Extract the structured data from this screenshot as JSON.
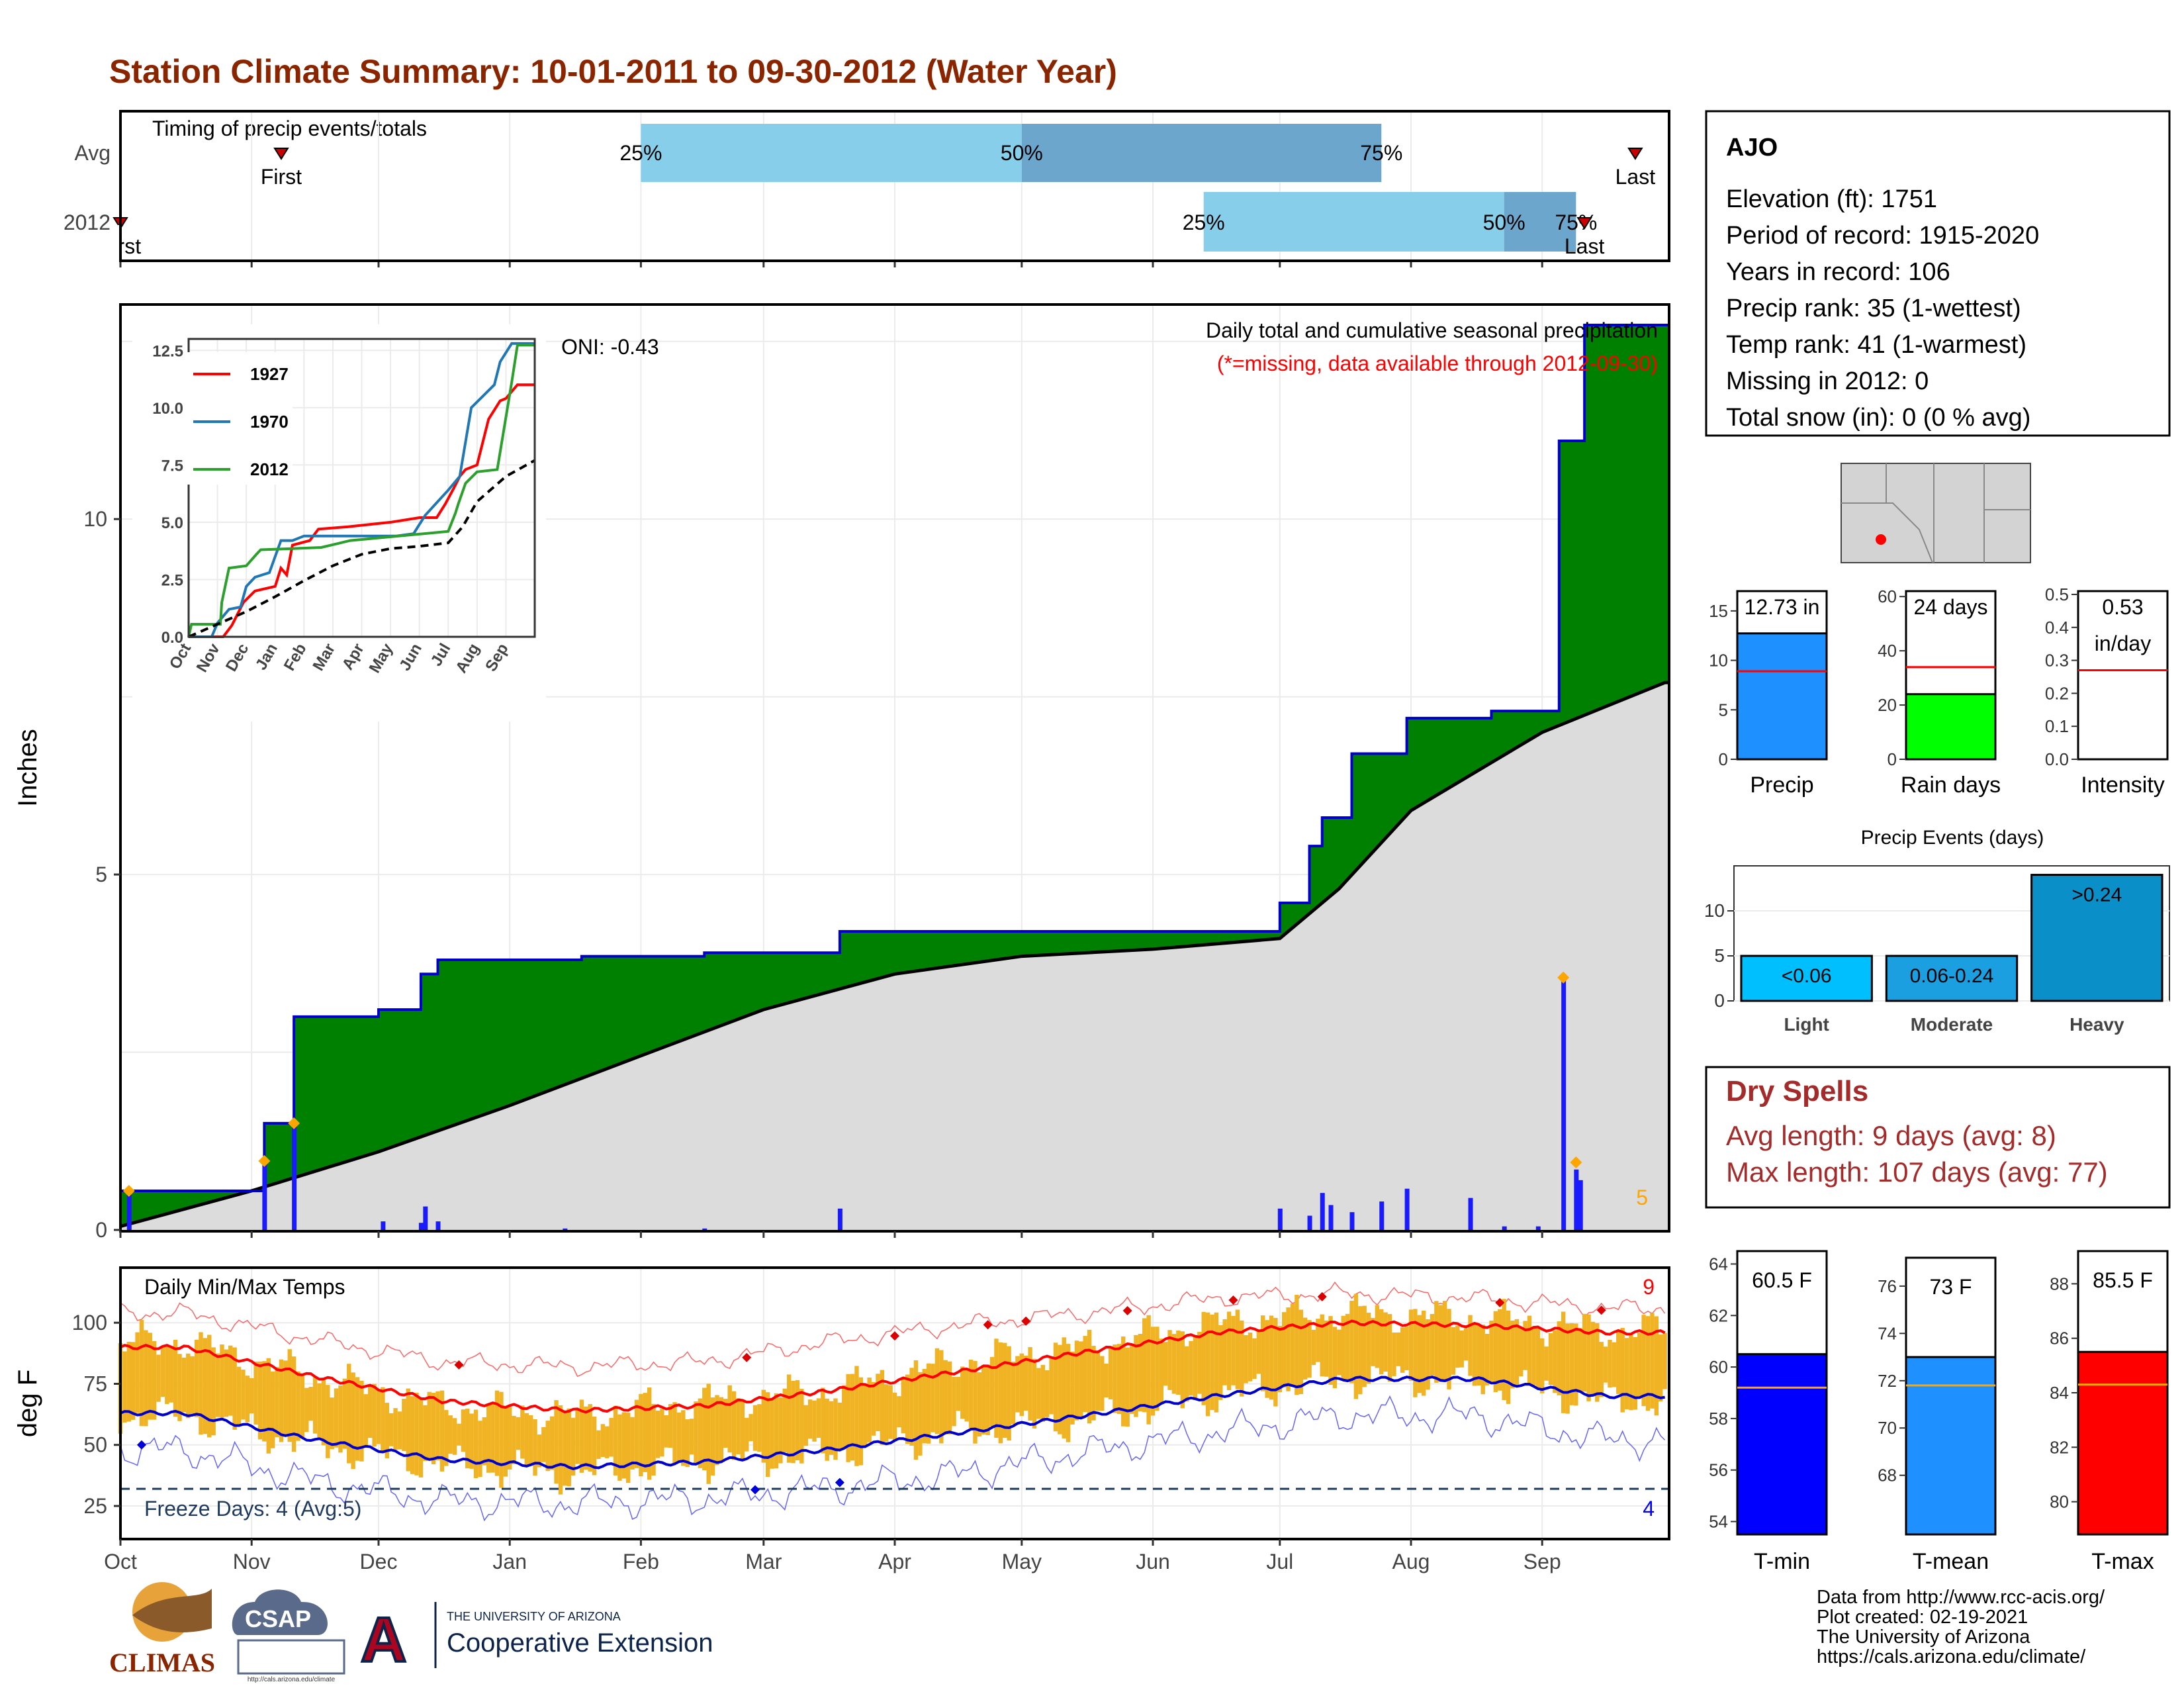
{
  "title": "Station Climate Summary: 10-01-2011 to 09-30-2012 (Water Year)",
  "months": [
    "Oct",
    "Nov",
    "Dec",
    "Jan",
    "Feb",
    "Mar",
    "Apr",
    "May",
    "Jun",
    "Jul",
    "Aug",
    "Sep"
  ],
  "colors": {
    "title": "#8B2500",
    "green": "#008000",
    "blue_line": "#0000CC",
    "bar_blue": "#1A1AFF",
    "orange": "#FFA500",
    "red": "#FF0000",
    "light_blue": "#87CEEB",
    "mid_blue": "#6CA6CD",
    "gray_fill": "#DCDCDC"
  },
  "timing_panel": {
    "label": "Timing of precip events/totals",
    "rows": [
      {
        "name": "Avg",
        "first": "Nov 8",
        "q25": "Feb 1",
        "q50": "May 1",
        "q75": "Jul 25",
        "last": "Sep 23",
        "first_label": "First",
        "last_label": "Last",
        "q25_label": "25%",
        "q50_label": "50%",
        "q75_label": "75%"
      },
      {
        "name": "2012",
        "first": "Oct 1",
        "q25": "Jun 13",
        "q50": "Aug 23",
        "q75": "Sep 9",
        "last": "Sep 11",
        "first_label": "First",
        "last_label": "Last",
        "q25_label": "25%",
        "q50_label": "50%",
        "q75_label": "75%"
      }
    ]
  },
  "precip_panel": {
    "ylabel": "Inches",
    "yticks": [
      0,
      5,
      10
    ],
    "ylim": [
      0,
      13
    ],
    "title_line1": "Daily total and cumulative seasonal precipitation",
    "title_line2": "(*=missing, data available through 2012-09-30)",
    "oni": "ONI: -0.43",
    "count_label": "5",
    "cumulative_2012": [
      {
        "date": "2011-10-01",
        "value": 0.55
      },
      {
        "date": "2011-11-04",
        "value": 1.5
      },
      {
        "date": "2011-11-11",
        "value": 3.0
      },
      {
        "date": "2011-12-01",
        "value": 3.1
      },
      {
        "date": "2011-12-11",
        "value": 3.6
      },
      {
        "date": "2011-12-15",
        "value": 3.8
      },
      {
        "date": "2012-01-18",
        "value": 3.85
      },
      {
        "date": "2012-02-16",
        "value": 3.9
      },
      {
        "date": "2012-03-19",
        "value": 4.2
      },
      {
        "date": "2012-07-01",
        "value": 4.6
      },
      {
        "date": "2012-07-08",
        "value": 5.4
      },
      {
        "date": "2012-07-11",
        "value": 5.8
      },
      {
        "date": "2012-07-18",
        "value": 6.7
      },
      {
        "date": "2012-07-31",
        "value": 7.2
      },
      {
        "date": "2012-08-20",
        "value": 7.3
      },
      {
        "date": "2012-09-05",
        "value": 11.1
      },
      {
        "date": "2012-09-11",
        "value": 12.73
      }
    ],
    "cumulative_avg": [
      {
        "date": "2011-10-01",
        "value": 0.05
      },
      {
        "date": "2011-11-01",
        "value": 0.55
      },
      {
        "date": "2011-12-01",
        "value": 1.1
      },
      {
        "date": "2012-01-01",
        "value": 1.75
      },
      {
        "date": "2012-02-01",
        "value": 2.45
      },
      {
        "date": "2012-03-01",
        "value": 3.1
      },
      {
        "date": "2012-04-01",
        "value": 3.6
      },
      {
        "date": "2012-05-01",
        "value": 3.85
      },
      {
        "date": "2012-06-01",
        "value": 3.95
      },
      {
        "date": "2012-07-01",
        "value": 4.1
      },
      {
        "date": "2012-07-15",
        "value": 4.8
      },
      {
        "date": "2012-08-01",
        "value": 5.9
      },
      {
        "date": "2012-09-01",
        "value": 7.0
      },
      {
        "date": "2012-09-30",
        "value": 7.7
      }
    ],
    "daily_bars": [
      {
        "date": "2011-10-03",
        "value": 0.5
      },
      {
        "date": "2011-11-04",
        "value": 0.95
      },
      {
        "date": "2011-11-11",
        "value": 1.45
      },
      {
        "date": "2011-12-02",
        "value": 0.12
      },
      {
        "date": "2011-12-11",
        "value": 0.1
      },
      {
        "date": "2011-12-12",
        "value": 0.33
      },
      {
        "date": "2011-12-15",
        "value": 0.12
      },
      {
        "date": "2012-01-14",
        "value": 0.02
      },
      {
        "date": "2012-02-16",
        "value": 0.02
      },
      {
        "date": "2012-03-19",
        "value": 0.3
      },
      {
        "date": "2012-07-01",
        "value": 0.3
      },
      {
        "date": "2012-07-08",
        "value": 0.2
      },
      {
        "date": "2012-07-11",
        "value": 0.52
      },
      {
        "date": "2012-07-13",
        "value": 0.35
      },
      {
        "date": "2012-07-18",
        "value": 0.25
      },
      {
        "date": "2012-07-25",
        "value": 0.4
      },
      {
        "date": "2012-07-31",
        "value": 0.58
      },
      {
        "date": "2012-08-15",
        "value": 0.45
      },
      {
        "date": "2012-08-23",
        "value": 0.05
      },
      {
        "date": "2012-08-31",
        "value": 0.05
      },
      {
        "date": "2012-09-06",
        "value": 3.6
      },
      {
        "date": "2012-09-09",
        "value": 0.85
      },
      {
        "date": "2012-09-10",
        "value": 0.7
      }
    ],
    "event_markers": [
      {
        "date": "2011-10-03",
        "value": 0.55
      },
      {
        "date": "2011-11-04",
        "value": 0.97
      },
      {
        "date": "2011-11-11",
        "value": 1.5
      },
      {
        "date": "2012-09-06",
        "value": 3.55
      },
      {
        "date": "2012-09-09",
        "value": 0.95
      }
    ]
  },
  "inset": {
    "yticks": [
      "0.0",
      "2.5",
      "5.0",
      "7.5",
      "10.0",
      "12.5"
    ],
    "xticks": [
      "Oct",
      "Nov",
      "Dec",
      "Jan",
      "Feb",
      "Mar",
      "Apr",
      "May",
      "Jun",
      "Jul",
      "Aug",
      "Sep"
    ],
    "legend": [
      "1927",
      "1970",
      "2012"
    ],
    "series": [
      {
        "name": "1927",
        "color": "#FF0000",
        "points": [
          [
            0,
            0
          ],
          [
            1.2,
            0
          ],
          [
            1.5,
            0.5
          ],
          [
            1.9,
            1.5
          ],
          [
            2.3,
            2.0
          ],
          [
            3.0,
            2.2
          ],
          [
            3.2,
            3.0
          ],
          [
            3.4,
            2.7
          ],
          [
            3.6,
            4.0
          ],
          [
            4.2,
            4.2
          ],
          [
            4.5,
            4.7
          ],
          [
            5.5,
            4.8
          ],
          [
            7.0,
            5.0
          ],
          [
            8.0,
            5.2
          ],
          [
            8.6,
            5.2
          ],
          [
            8.9,
            5.8
          ],
          [
            9.2,
            6.5
          ],
          [
            9.4,
            7.0
          ],
          [
            9.6,
            7.3
          ],
          [
            10.0,
            7.5
          ],
          [
            10.4,
            9.5
          ],
          [
            10.8,
            10.3
          ],
          [
            11.0,
            10.4
          ],
          [
            11.4,
            11.0
          ],
          [
            12.0,
            11.0
          ]
        ]
      },
      {
        "name": "1970",
        "color": "#1F77B4",
        "points": [
          [
            0,
            0
          ],
          [
            0.8,
            0
          ],
          [
            1.0,
            0.6
          ],
          [
            1.4,
            1.2
          ],
          [
            1.8,
            1.3
          ],
          [
            2.0,
            2.2
          ],
          [
            2.3,
            2.6
          ],
          [
            2.8,
            2.8
          ],
          [
            3.2,
            4.2
          ],
          [
            3.6,
            4.2
          ],
          [
            4.0,
            4.4
          ],
          [
            5.0,
            4.4
          ],
          [
            6.0,
            4.4
          ],
          [
            7.2,
            4.4
          ],
          [
            7.8,
            4.5
          ],
          [
            8.2,
            5.3
          ],
          [
            9.0,
            6.4
          ],
          [
            9.4,
            7.0
          ],
          [
            9.8,
            10.0
          ],
          [
            10.2,
            10.5
          ],
          [
            10.6,
            11.0
          ],
          [
            10.8,
            12.0
          ],
          [
            11.2,
            12.8
          ],
          [
            12.0,
            12.8
          ]
        ]
      },
      {
        "name": "2012",
        "color": "#2CA02C",
        "points": [
          [
            0,
            0
          ],
          [
            0.1,
            0.55
          ],
          [
            1.1,
            0.55
          ],
          [
            1.15,
            1.5
          ],
          [
            1.4,
            3.0
          ],
          [
            2.0,
            3.1
          ],
          [
            2.35,
            3.6
          ],
          [
            2.5,
            3.8
          ],
          [
            3.6,
            3.85
          ],
          [
            4.6,
            3.9
          ],
          [
            5.6,
            4.2
          ],
          [
            9.0,
            4.6
          ],
          [
            9.25,
            5.4
          ],
          [
            9.35,
            5.8
          ],
          [
            9.6,
            6.7
          ],
          [
            10.0,
            7.2
          ],
          [
            10.7,
            7.3
          ],
          [
            11.2,
            11.1
          ],
          [
            11.4,
            12.73
          ],
          [
            12.0,
            12.73
          ]
        ]
      },
      {
        "name": "avg",
        "color": "#000000",
        "points": [
          [
            0,
            0
          ],
          [
            1,
            0.55
          ],
          [
            2,
            1.1
          ],
          [
            3,
            1.75
          ],
          [
            4,
            2.45
          ],
          [
            5,
            3.1
          ],
          [
            6,
            3.6
          ],
          [
            7,
            3.85
          ],
          [
            8,
            3.95
          ],
          [
            9,
            4.1
          ],
          [
            9.5,
            4.8
          ],
          [
            10,
            5.9
          ],
          [
            11,
            7.0
          ],
          [
            12,
            7.7
          ]
        ]
      }
    ]
  },
  "temp_panel": {
    "ylabel": "deg F",
    "yticks": [
      25,
      50,
      75,
      100
    ],
    "title": "Daily Min/Max Temps",
    "freeze_label": "Freeze Days: 4 (Avg:5)",
    "count_high": "9",
    "count_low": "4",
    "freeze_line_f": 32,
    "avg_max_monthly": [
      90,
      78,
      68,
      64,
      66,
      72,
      80,
      88,
      96,
      100,
      99,
      96
    ],
    "avg_min_monthly": [
      63,
      52,
      44,
      41,
      43,
      48,
      55,
      62,
      70,
      77,
      77,
      70
    ],
    "record_high_monthly": [
      104,
      93,
      84,
      82,
      84,
      92,
      99,
      104,
      110,
      112,
      110,
      106
    ],
    "record_low_monthly": [
      48,
      35,
      27,
      26,
      28,
      32,
      38,
      47,
      55,
      62,
      62,
      52
    ],
    "obs_high_monthly": [
      92,
      78,
      66,
      62,
      68,
      72,
      84,
      90,
      100,
      104,
      102,
      97
    ],
    "obs_low_monthly": [
      62,
      50,
      42,
      38,
      43,
      46,
      55,
      60,
      70,
      77,
      76,
      68
    ]
  },
  "station_info": {
    "name": "AJO",
    "lines": [
      "Elevation (ft): 1751",
      "Period of record: 1915-2020",
      "Years in record: 106",
      "Precip rank: 35 (1-wettest)",
      "Temp rank: 41 (1-warmest)",
      "Missing in 2012: 0",
      "Total snow (in): 0 (0 % avg)"
    ]
  },
  "summary_bars": [
    {
      "label": "Precip",
      "value": 12.73,
      "avg": 8.9,
      "text": "12.73 in",
      "ylim": [
        0,
        17
      ],
      "yticks": [
        "0",
        "5",
        "10",
        "15"
      ],
      "tickvals": [
        0,
        5,
        10,
        15
      ],
      "color": "#1E90FF"
    },
    {
      "label": "Rain days",
      "value": 24,
      "avg": 34,
      "text": "24 days",
      "ylim": [
        0,
        62
      ],
      "yticks": [
        "0",
        "20",
        "40",
        "60"
      ],
      "tickvals": [
        0,
        20,
        40,
        60
      ],
      "color": "#00FF00"
    },
    {
      "label": "Intensity",
      "value": 0.53,
      "avg": 0.27,
      "text": "0.53",
      "text2": "in/day",
      "ylim": [
        0,
        0.51
      ],
      "yticks": [
        "0.0",
        "0.1",
        "0.2",
        "0.3",
        "0.4",
        "0.5"
      ],
      "tickvals": [
        0,
        0.1,
        0.2,
        0.3,
        0.4,
        0.5
      ],
      "color": "#FFFFFF"
    }
  ],
  "precip_events": {
    "title": "Precip Events (days)",
    "categories": [
      "Light",
      "Moderate",
      "Heavy"
    ],
    "values": [
      5,
      5,
      14
    ],
    "labels": [
      "<0.06",
      "0.06-0.24",
      ">0.24"
    ],
    "colors": [
      "#00BFFF",
      "#1C9FE0",
      "#0A8FC8"
    ],
    "ylim": [
      0,
      15
    ],
    "yticks": [
      0,
      5,
      10
    ]
  },
  "dry_spells": {
    "title": "Dry Spells",
    "avg": "Avg length: 9 days (avg: 8)",
    "max": "Max length: 107 days (avg: 77)"
  },
  "temp_bars": [
    {
      "label": "T-min",
      "value": 60.5,
      "avg": 59.2,
      "text": "60.5 F",
      "ylim": [
        53.5,
        64.5
      ],
      "yticks": [
        "54",
        "56",
        "58",
        "60",
        "62",
        "64"
      ],
      "tickvals": [
        54,
        56,
        58,
        60,
        62,
        64
      ],
      "color": "#0000FF"
    },
    {
      "label": "T-mean",
      "value": 73,
      "avg": 71.8,
      "text": "73 F",
      "ylim": [
        65.5,
        77.2
      ],
      "yticks": [
        "68",
        "70",
        "72",
        "74",
        "76"
      ],
      "tickvals": [
        68,
        70,
        72,
        74,
        76
      ],
      "color": "#1E90FF"
    },
    {
      "label": "T-max",
      "value": 85.5,
      "avg": 84.3,
      "text": "85.5 F",
      "ylim": [
        78.8,
        89.2
      ],
      "yticks": [
        "80",
        "82",
        "84",
        "86",
        "88"
      ],
      "tickvals": [
        80,
        82,
        84,
        86,
        88
      ],
      "color": "#FF0000"
    }
  ],
  "footer": {
    "lines": [
      "Data from http://www.rcc-acis.org/",
      "Plot created: 02-19-2021",
      "The University of Arizona",
      "https://cals.arizona.edu/climate/"
    ],
    "logo_climas": "CLIMAS",
    "logo_csap": "CSAP",
    "logo_csap_url": "http://cals.arizona.edu/climate",
    "ua_line1": "THE UNIVERSITY OF ARIZONA",
    "ua_line2": "Cooperative Extension"
  }
}
